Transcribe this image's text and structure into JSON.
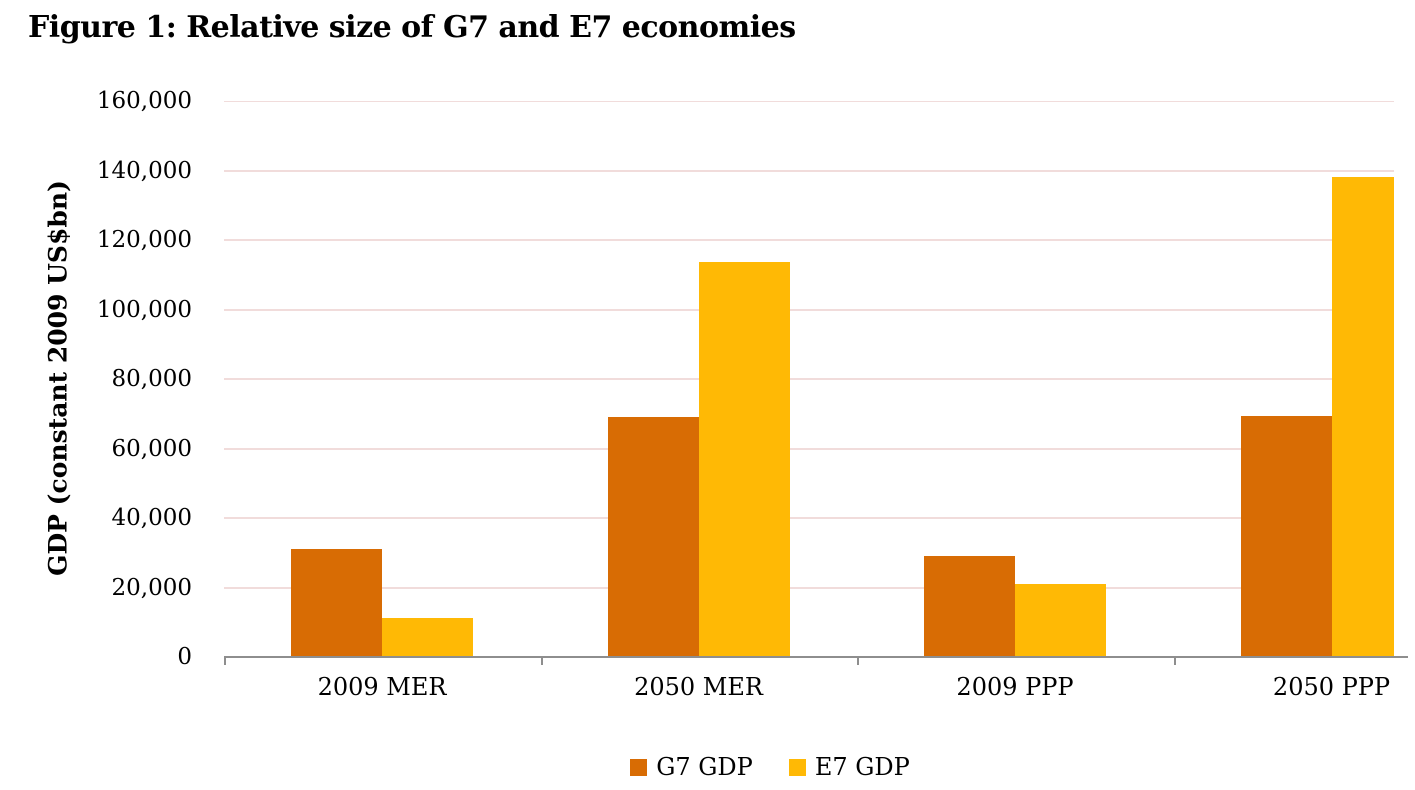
{
  "figure": {
    "title": "Figure 1: Relative size of G7 and E7 economies"
  },
  "chart_data": {
    "type": "bar",
    "title": "Figure 1: Relative size of G7 and E7 economies",
    "categories": [
      "2009 MER",
      "2050 MER",
      "2009 PPP",
      "2050 PPP"
    ],
    "series": [
      {
        "name": "G7 GDP",
        "color": "#D86C04",
        "values": [
          31000,
          69000,
          29000,
          69300
        ]
      },
      {
        "name": "E7 GDP",
        "color": "#FFB905",
        "values": [
          11300,
          113700,
          21000,
          138200
        ]
      }
    ],
    "xlabel": "",
    "ylabel": "GDP (constant 2009 US$bn)",
    "ylim": [
      0,
      160000
    ],
    "ytick_step": 20000,
    "ytick_labels": [
      "0",
      "20,000",
      "40,000",
      "60,000",
      "80,000",
      "100,000",
      "120,000",
      "140,000",
      "160,000"
    ],
    "grid": true,
    "legend_position": "bottom",
    "colors": {
      "gridline": "#F1DCDB",
      "axis": "#8E8E8E",
      "text": "#000000",
      "background": "#FFFFFF"
    }
  }
}
